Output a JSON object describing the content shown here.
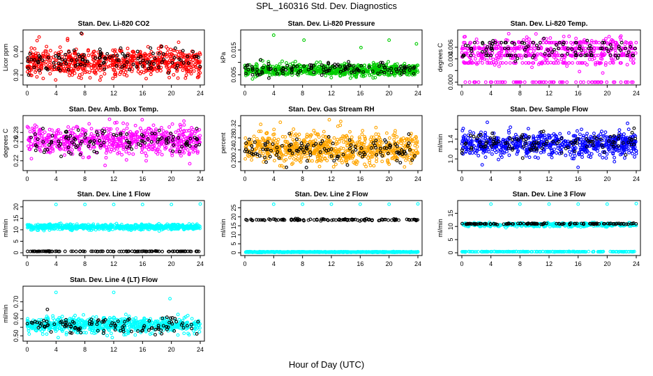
{
  "figure": {
    "title": "SPL_160316  Std. Dev. Diagnostics",
    "xlabel": "Hour of Day (UTC)"
  },
  "chart_data": [
    {
      "type": "scatter",
      "title": "Stan. Dev. Li-820 CO2",
      "ylabel": "Licor ppm",
      "xlim": [
        0,
        24
      ],
      "ylim": [
        0.27,
        0.48
      ],
      "xticks": [
        0,
        4,
        8,
        12,
        16,
        20,
        24
      ],
      "yticks": [
        0.3,
        0.35,
        0.4
      ],
      "ytick_labels": [
        "0.30",
        "",
        "0.40"
      ],
      "grid": false,
      "series": [
        {
          "color": "#ff0000",
          "n": 700,
          "base": 0.355,
          "spread": 0.03,
          "gen_seed": 11,
          "outliers": [
            [
              7.6,
              0.475
            ],
            [
              16.5,
              0.285
            ],
            [
              23.7,
              0.29
            ],
            [
              5.6,
              0.455
            ]
          ]
        },
        {
          "color": "#000000",
          "n": 120,
          "base": 0.36,
          "spread": 0.028,
          "gen_seed": 12,
          "outliers": [
            [
              7.5,
              0.478
            ]
          ]
        }
      ]
    },
    {
      "type": "scatter",
      "title": "Stan. Dev. Li-820 Pressure",
      "ylabel": "kPa",
      "xlim": [
        0,
        24
      ],
      "ylim": [
        0.002,
        0.022
      ],
      "xticks": [
        0,
        4,
        8,
        12,
        16,
        20,
        24
      ],
      "yticks": [
        0.005,
        0.01,
        0.015
      ],
      "ytick_labels": [
        "0.005",
        "",
        "0.015"
      ],
      "grid": false,
      "series": [
        {
          "color": "#00cc00",
          "n": 700,
          "base": 0.007,
          "spread": 0.0012,
          "gen_seed": 21,
          "outliers": [
            [
              4.0,
              0.021
            ],
            [
              8.2,
              0.019
            ],
            [
              16.1,
              0.016
            ],
            [
              20.0,
              0.019
            ],
            [
              23.8,
              0.0175
            ]
          ]
        },
        {
          "color": "#000000",
          "n": 120,
          "base": 0.0072,
          "spread": 0.0012,
          "gen_seed": 22,
          "outliers": []
        }
      ]
    },
    {
      "type": "scatter",
      "title": "Stan. Dev. Li-820 Temp.",
      "ylabel": "degrees C",
      "xlim": [
        0,
        24
      ],
      "ylim": [
        0,
        0.0085
      ],
      "xticks": [
        0,
        4,
        8,
        12,
        16,
        20,
        24
      ],
      "yticks": [
        0.0,
        0.002,
        0.004,
        0.006
      ],
      "ytick_labels": [
        "0.000",
        "",
        "0.004",
        "0.006"
      ],
      "grid": false,
      "series": [
        {
          "color": "#ff00ff",
          "n": 650,
          "base": 0.0052,
          "spread": 0.0012,
          "gen_seed": 31,
          "levels": [
            0,
            0.0033,
            0.0046,
            0.0058,
            0.0068
          ],
          "outliers": [
            [
              10.2,
              0.0083
            ]
          ]
        },
        {
          "color": "#000000",
          "n": 110,
          "base": 0.0057,
          "spread": 0.001,
          "gen_seed": 32,
          "levels": [
            0.0046,
            0.0058,
            0.0068
          ],
          "outliers": []
        }
      ]
    },
    {
      "type": "scatter",
      "title": "Stan. Dev. Amb. Box Temp.",
      "ylabel": "degrees C",
      "xlim": [
        0,
        24
      ],
      "ylim": [
        0.205,
        0.31
      ],
      "xticks": [
        0,
        4,
        8,
        12,
        16,
        20,
        24
      ],
      "yticks": [
        0.22,
        0.24,
        0.26,
        0.28
      ],
      "ytick_labels": [
        "0.22",
        "",
        "0.26",
        "0.28"
      ],
      "grid": false,
      "series": [
        {
          "color": "#ff00ff",
          "n": 650,
          "base": 0.262,
          "spread": 0.015,
          "gen_seed": 41,
          "outliers": [
            [
              10.8,
              0.21
            ],
            [
              16.5,
              0.22
            ]
          ]
        },
        {
          "color": "#000000",
          "n": 110,
          "base": 0.262,
          "spread": 0.014,
          "gen_seed": 42,
          "outliers": []
        }
      ]
    },
    {
      "type": "scatter",
      "title": "Stan. Dev. Gas Stream RH",
      "ylabel": "percent",
      "xlim": [
        0,
        24
      ],
      "ylim": [
        0.18,
        0.345
      ],
      "xticks": [
        0,
        4,
        8,
        12,
        16,
        20,
        24
      ],
      "yticks": [
        0.2,
        0.24,
        0.28,
        0.32
      ],
      "ytick_labels": [
        "0.20",
        "0.24",
        "0.28",
        "0.32"
      ],
      "grid": false,
      "series": [
        {
          "color": "#ffa500",
          "n": 750,
          "base": 0.245,
          "spread": 0.025,
          "gen_seed": 51,
          "outliers": [
            [
              13.3,
              0.335
            ],
            [
              2.2,
              0.325
            ]
          ]
        },
        {
          "color": "#000000",
          "n": 120,
          "base": 0.24,
          "spread": 0.02,
          "gen_seed": 52,
          "outliers": []
        }
      ]
    },
    {
      "type": "scatter",
      "title": "Stan. Dev. Sample Flow",
      "ylabel": "ml/min",
      "xlim": [
        0,
        24
      ],
      "ylim": [
        0.82,
        1.82
      ],
      "xticks": [
        0,
        4,
        8,
        12,
        16,
        20,
        24
      ],
      "yticks": [
        1.0,
        1.2,
        1.4,
        1.6
      ],
      "ytick_labels": [
        "1.0",
        "",
        "1.4",
        ""
      ],
      "grid": false,
      "series": [
        {
          "color": "#0000ff",
          "n": 700,
          "base": 1.3,
          "spread": 0.12,
          "gen_seed": 61,
          "outliers": [
            [
              2.8,
              0.88
            ],
            [
              3.5,
              1.74
            ],
            [
              22.8,
              1.72
            ]
          ]
        },
        {
          "color": "#000000",
          "n": 110,
          "base": 1.33,
          "spread": 0.1,
          "gen_seed": 62,
          "outliers": [
            [
              23.7,
              1.62
            ]
          ]
        }
      ]
    },
    {
      "type": "scatter",
      "title": "Stan. Dev. Line 1 Flow",
      "ylabel": "ml/min",
      "xlim": [
        0,
        24
      ],
      "ylim": [
        0,
        21.5
      ],
      "xticks": [
        0,
        4,
        8,
        12,
        16,
        20,
        24
      ],
      "yticks": [
        0,
        5,
        10,
        15,
        20
      ],
      "ytick_labels": [
        "0",
        "5",
        "10",
        "15",
        "20"
      ],
      "grid": false,
      "series": [
        {
          "color": "#00ffff",
          "n": 700,
          "base": 11.2,
          "spread": 0.55,
          "gen_seed": 71,
          "outliers": [
            [
              4.0,
              21.0
            ],
            [
              8.0,
              21.0
            ],
            [
              12.0,
              21.0
            ],
            [
              16.0,
              21.0
            ],
            [
              20.0,
              21.0
            ],
            [
              24.0,
              21.2
            ]
          ]
        },
        {
          "color": "#000000",
          "n": 110,
          "base": 0.6,
          "spread": 0.05,
          "gen_seed": 72,
          "outliers": []
        }
      ]
    },
    {
      "type": "scatter",
      "title": "Stan. Dev. Line 2 Flow",
      "ylabel": "ml/min",
      "xlim": [
        0,
        24
      ],
      "ylim": [
        0,
        27.5
      ],
      "xticks": [
        0,
        4,
        8,
        12,
        16,
        20,
        24
      ],
      "yticks": [
        0,
        5,
        10,
        15,
        20,
        25
      ],
      "ytick_labels": [
        "0",
        "5",
        "10",
        "15",
        "20",
        "25"
      ],
      "grid": false,
      "series": [
        {
          "color": "#00ffff",
          "n": 700,
          "base": 0.4,
          "spread": 0.1,
          "gen_seed": 81,
          "outliers": [
            [
              4.0,
              27.0
            ],
            [
              8.0,
              27.0
            ],
            [
              12.0,
              27.0
            ],
            [
              16.0,
              27.0
            ],
            [
              20.0,
              27.0
            ],
            [
              24.0,
              27.2
            ]
          ]
        },
        {
          "color": "#000000",
          "n": 110,
          "base": 18.3,
          "spread": 0.25,
          "gen_seed": 82,
          "outliers": []
        }
      ]
    },
    {
      "type": "scatter",
      "title": "Stan. Dev. Line 3 Flow",
      "ylabel": "ml/min",
      "xlim": [
        0,
        24
      ],
      "ylim": [
        0,
        18.8
      ],
      "xticks": [
        0,
        4,
        8,
        12,
        16,
        20,
        24
      ],
      "yticks": [
        0,
        5,
        10,
        15
      ],
      "ytick_labels": [
        "0",
        "5",
        "10",
        "15"
      ],
      "grid": false,
      "series": [
        {
          "color": "#00ffff",
          "n": 650,
          "base": 10.6,
          "spread": 0.35,
          "gen_seed": 91,
          "lowband": 0.4,
          "outliers": [
            [
              4.0,
              18.5
            ],
            [
              8.0,
              18.5
            ],
            [
              12.0,
              18.5
            ],
            [
              16.0,
              18.5
            ],
            [
              20.0,
              18.5
            ],
            [
              24.0,
              18.7
            ]
          ]
        },
        {
          "color": "#000000",
          "n": 110,
          "base": 11.0,
          "spread": 0.12,
          "gen_seed": 92,
          "outliers": []
        }
      ]
    },
    {
      "type": "scatter",
      "title": "Stan. Dev. Line 4 (LT) Flow",
      "ylabel": "ml/min",
      "xlim": [
        0,
        24
      ],
      "ylim": [
        0.485,
        0.775
      ],
      "xticks": [
        0,
        4,
        8,
        12,
        16,
        20,
        24
      ],
      "yticks": [
        0.5,
        0.55,
        0.6,
        0.65,
        0.7
      ],
      "ytick_labels": [
        "0.50",
        "",
        "0.60",
        "",
        "0.70"
      ],
      "grid": false,
      "series": [
        {
          "color": "#00ffff",
          "n": 700,
          "base": 0.563,
          "spread": 0.022,
          "gen_seed": 101,
          "outliers": [
            [
              4.0,
              0.755
            ],
            [
              12.0,
              0.755
            ],
            [
              19.8,
              0.718
            ],
            [
              4.3,
              0.49
            ],
            [
              11.8,
              0.49
            ]
          ]
        },
        {
          "color": "#000000",
          "n": 110,
          "base": 0.558,
          "spread": 0.022,
          "gen_seed": 102,
          "outliers": [
            [
              2.8,
              0.655
            ]
          ]
        }
      ]
    }
  ]
}
